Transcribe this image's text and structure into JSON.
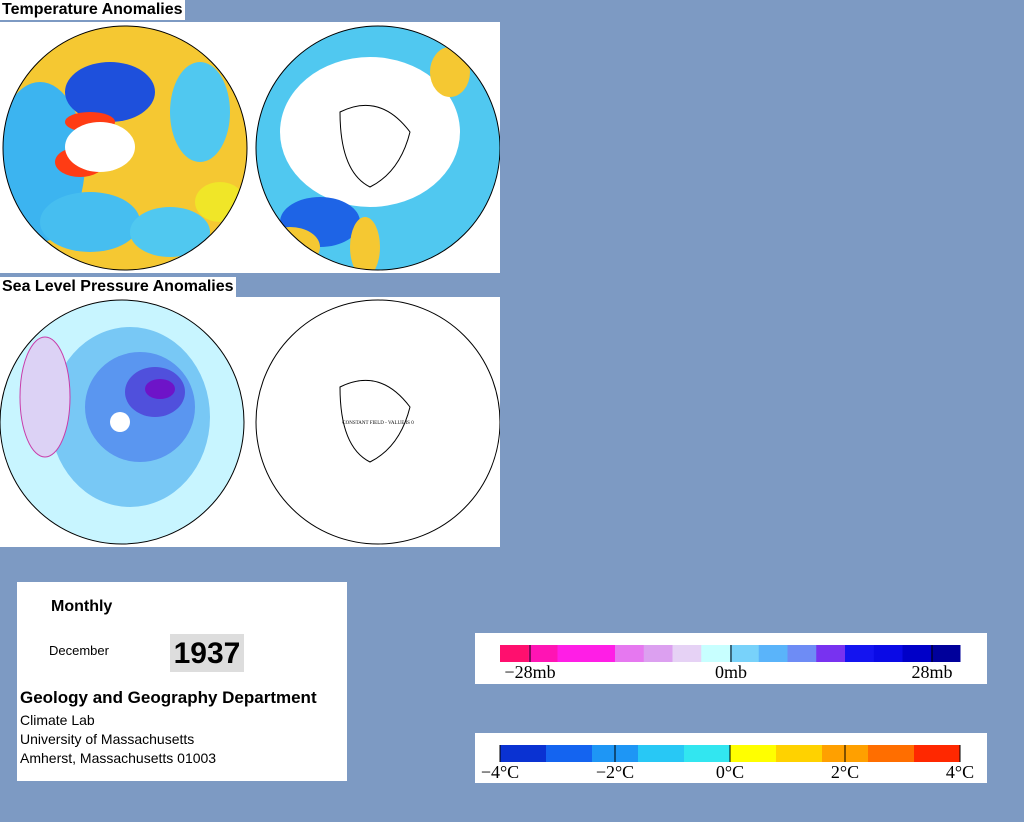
{
  "panels": [
    {
      "title": "Temperature Anomalies"
    },
    {
      "title": "Sea Level Pressure Anomalies",
      "note": "CONSTANT FIELD - VALUE IS 0"
    }
  ],
  "info": {
    "frequency": "Monthly",
    "month": "December",
    "year": "1937",
    "department": "Geology and Geography Department",
    "address": [
      "Climate Lab",
      "University of Massachusetts",
      "Amherst, Massachusetts 01003"
    ]
  },
  "legends": [
    {
      "labels": [
        "−28mb",
        "0mb",
        "28mb"
      ],
      "colors": [
        "#ff0f6e",
        "#ff14b4",
        "#ff1ee6",
        "#ff1ee6",
        "#e678f0",
        "#dca0f0",
        "#e6d2f5",
        "#c8ffff",
        "#78d2fa",
        "#5ab4fa",
        "#6e8cf5",
        "#7832f0",
        "#1414f0",
        "#0a0ae6",
        "#0000c8",
        "#00009b"
      ]
    },
    {
      "labels": [
        "−4°C",
        "−2°C",
        "0°C",
        "2°C",
        "4°C"
      ],
      "colors": [
        "#0a32d2",
        "#1464f0",
        "#1e96f5",
        "#28c8f5",
        "#32e6f0",
        "#ffff00",
        "#ffd200",
        "#ffa000",
        "#ff6e00",
        "#ff2800"
      ]
    }
  ]
}
